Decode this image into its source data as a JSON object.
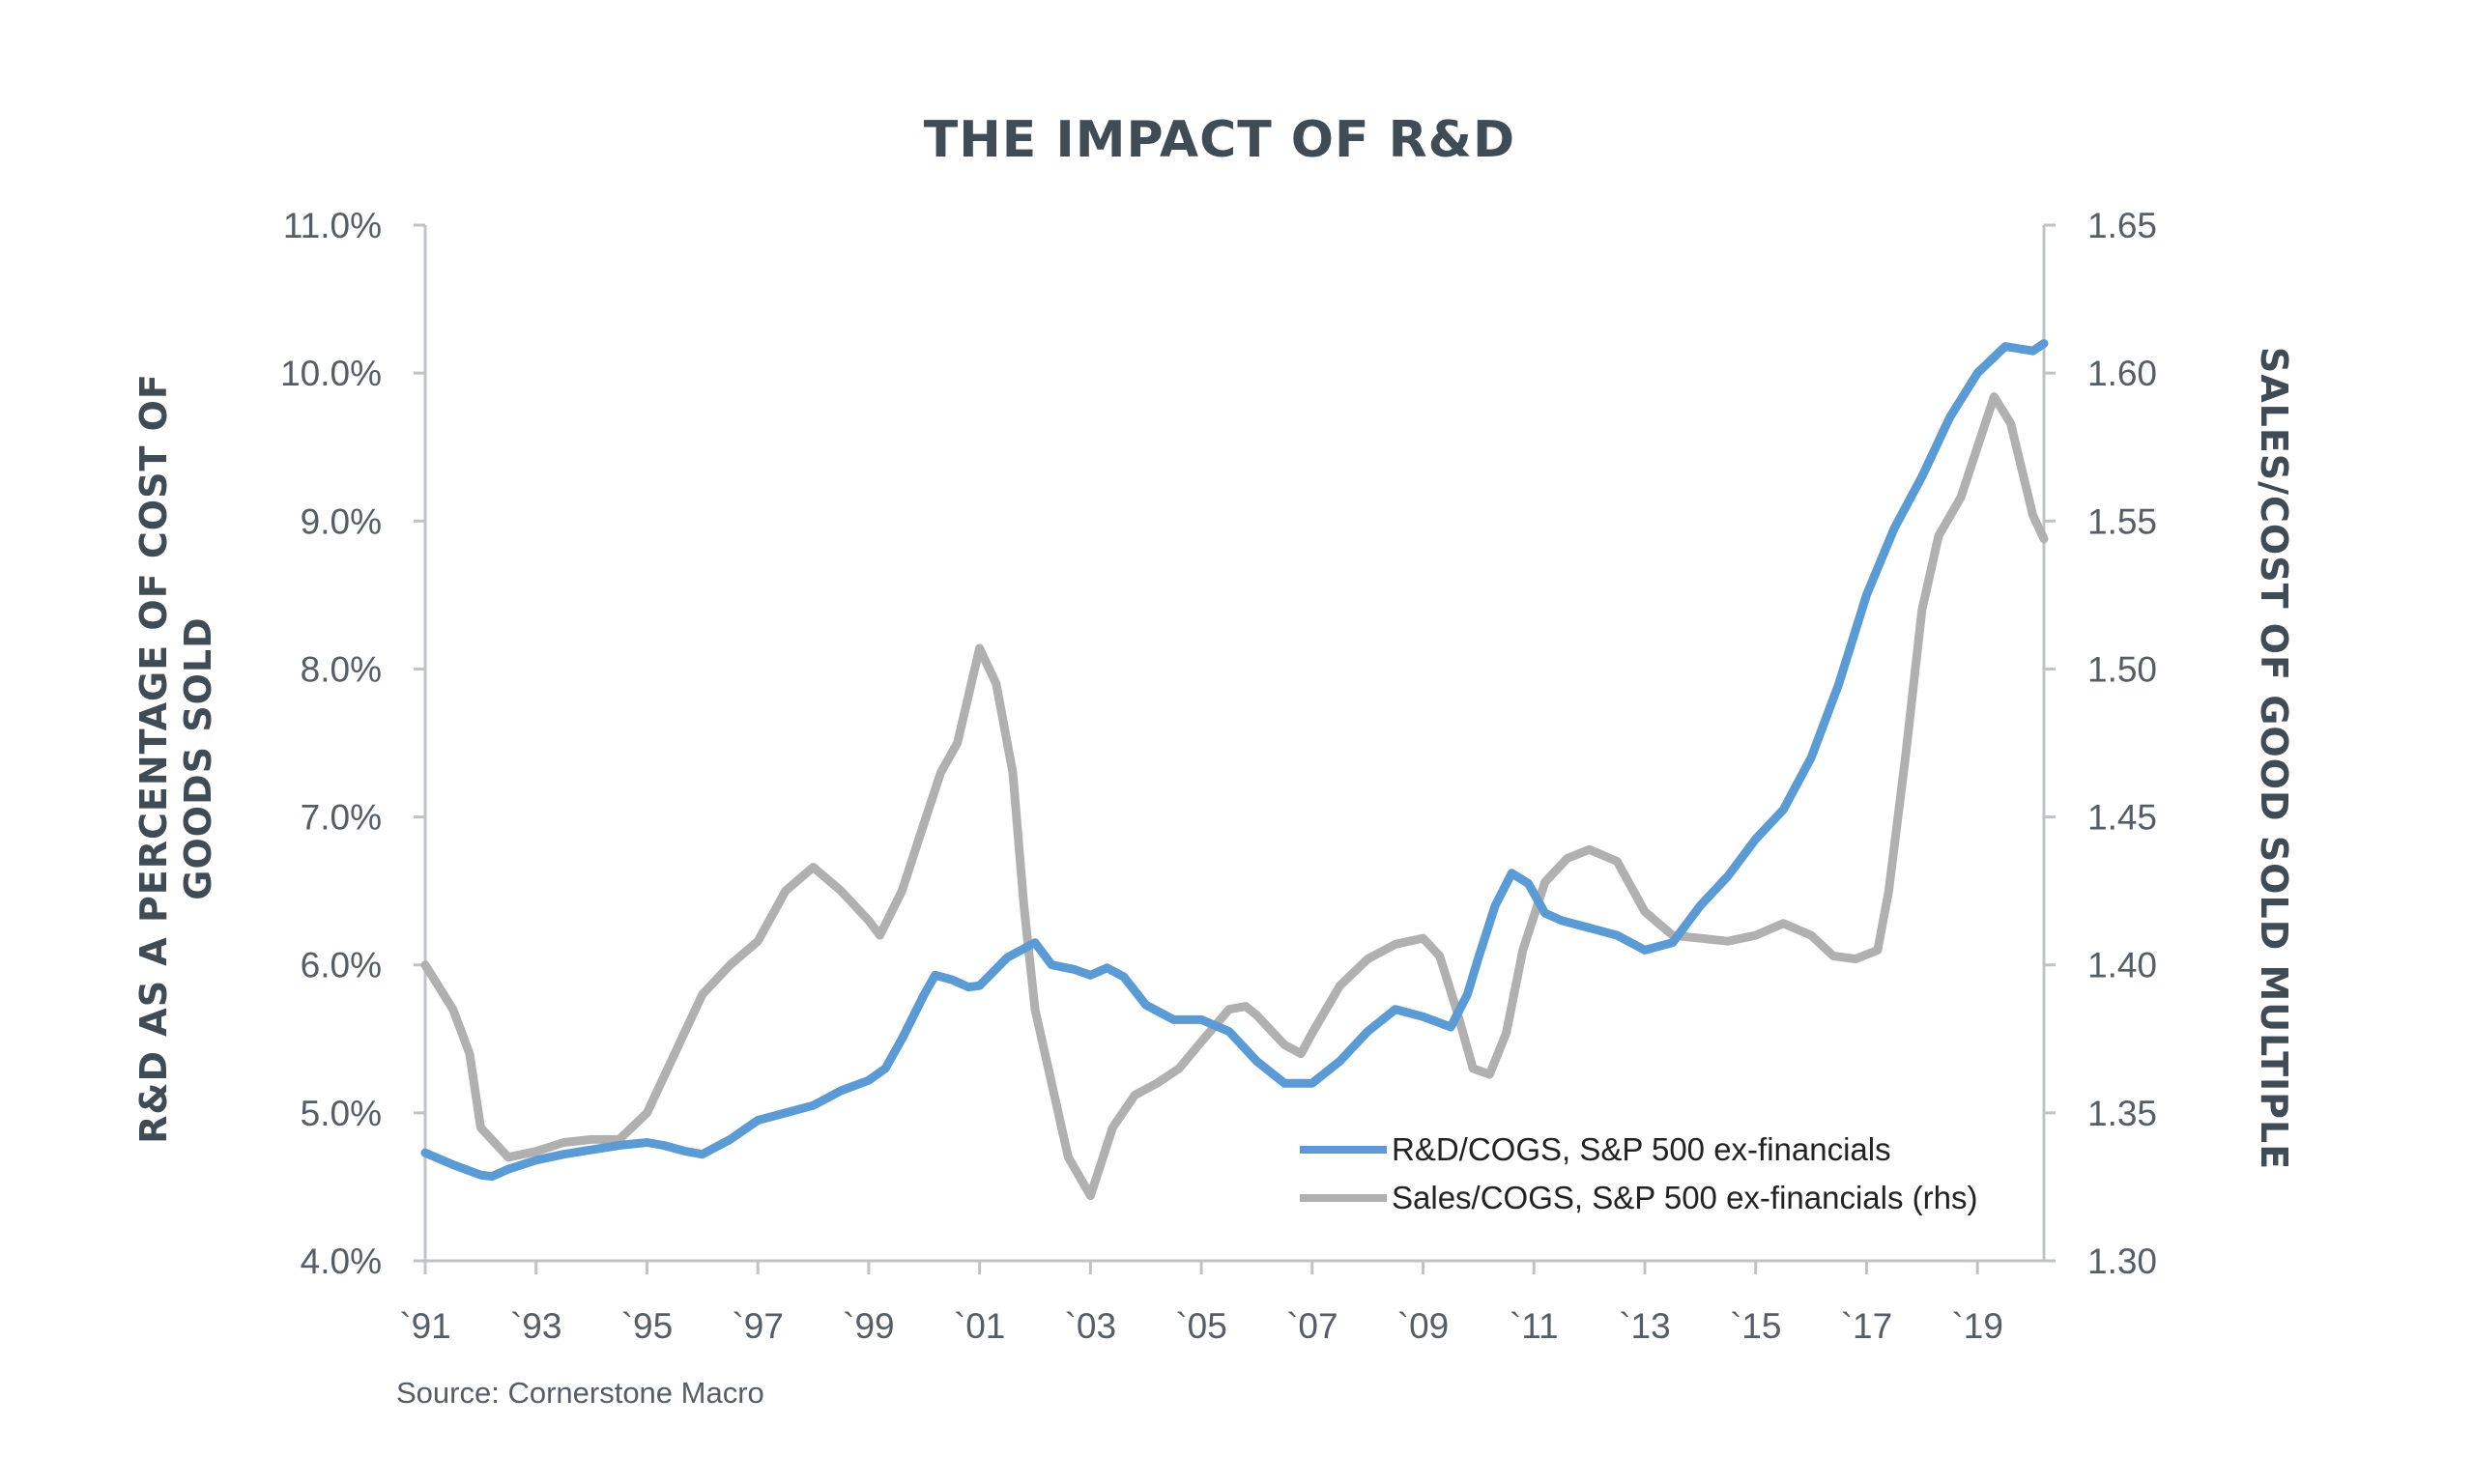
{
  "chart_data": {
    "type": "line",
    "title": "THE IMPACT OF R&D",
    "ylabel_left": [
      "R&D AS A PERCENTAGE OF COST OF",
      "GOODS SOLD"
    ],
    "ylabel_right": "SALES/COST OF GOOD SOLD MULTIPLE",
    "source": "Source: Cornerstone Macro",
    "xlim": [
      1991,
      2020.2
    ],
    "x_ticks": [
      1991,
      1993,
      1995,
      1997,
      1999,
      2001,
      2003,
      2005,
      2007,
      2009,
      2011,
      2013,
      2015,
      2017,
      2019
    ],
    "x_tick_labels": [
      "`91",
      "`93",
      "`95",
      "`97",
      "`99",
      "`01",
      "`03",
      "`05",
      "`07",
      "`09",
      "`11",
      "`13",
      "`15",
      "`17",
      "`19"
    ],
    "ylim_left": [
      4.0,
      11.0
    ],
    "y_ticks_left": [
      4.0,
      5.0,
      6.0,
      7.0,
      8.0,
      9.0,
      10.0,
      11.0
    ],
    "y_tick_labels_left": [
      "4.0%",
      "5.0%",
      "6.0%",
      "7.0%",
      "8.0%",
      "9.0%",
      "10.0%",
      "11.0%"
    ],
    "ylim_right": [
      1.3,
      1.65
    ],
    "y_ticks_right": [
      1.3,
      1.35,
      1.4,
      1.45,
      1.5,
      1.55,
      1.6,
      1.65
    ],
    "y_tick_labels_right": [
      "1.30",
      "1.35",
      "1.40",
      "1.45",
      "1.50",
      "1.55",
      "1.60",
      "1.65"
    ],
    "grid": false,
    "legend_position": "bottom-right",
    "series": [
      {
        "name": "R&D/COGS, S&P 500 ex-financials",
        "axis": "left",
        "color": "#5b9bd5",
        "points": [
          [
            1991.0,
            4.73
          ],
          [
            1991.5,
            4.65
          ],
          [
            1992.0,
            4.58
          ],
          [
            1992.2,
            4.57
          ],
          [
            1992.5,
            4.62
          ],
          [
            1993.0,
            4.68
          ],
          [
            1993.5,
            4.72
          ],
          [
            1994.0,
            4.75
          ],
          [
            1994.5,
            4.78
          ],
          [
            1995.0,
            4.8
          ],
          [
            1995.3,
            4.78
          ],
          [
            1995.7,
            4.74
          ],
          [
            1996.0,
            4.72
          ],
          [
            1996.5,
            4.82
          ],
          [
            1997.0,
            4.95
          ],
          [
            1997.5,
            5.0
          ],
          [
            1998.0,
            5.05
          ],
          [
            1998.5,
            5.15
          ],
          [
            1999.0,
            5.22
          ],
          [
            1999.3,
            5.3
          ],
          [
            1999.6,
            5.5
          ],
          [
            2000.0,
            5.8
          ],
          [
            2000.2,
            5.93
          ],
          [
            2000.5,
            5.9
          ],
          [
            2000.8,
            5.85
          ],
          [
            2001.0,
            5.86
          ],
          [
            2001.5,
            6.05
          ],
          [
            2002.0,
            6.15
          ],
          [
            2002.3,
            6.0
          ],
          [
            2002.7,
            5.97
          ],
          [
            2003.0,
            5.93
          ],
          [
            2003.3,
            5.98
          ],
          [
            2003.6,
            5.92
          ],
          [
            2004.0,
            5.73
          ],
          [
            2004.5,
            5.63
          ],
          [
            2005.0,
            5.63
          ],
          [
            2005.5,
            5.55
          ],
          [
            2006.0,
            5.35
          ],
          [
            2006.5,
            5.2
          ],
          [
            2007.0,
            5.2
          ],
          [
            2007.5,
            5.35
          ],
          [
            2008.0,
            5.55
          ],
          [
            2008.5,
            5.7
          ],
          [
            2009.0,
            5.65
          ],
          [
            2009.5,
            5.58
          ],
          [
            2009.8,
            5.8
          ],
          [
            2010.0,
            6.05
          ],
          [
            2010.3,
            6.4
          ],
          [
            2010.6,
            6.62
          ],
          [
            2010.9,
            6.55
          ],
          [
            2011.2,
            6.35
          ],
          [
            2011.5,
            6.3
          ],
          [
            2012.0,
            6.25
          ],
          [
            2012.5,
            6.2
          ],
          [
            2013.0,
            6.1
          ],
          [
            2013.5,
            6.15
          ],
          [
            2014.0,
            6.4
          ],
          [
            2014.5,
            6.6
          ],
          [
            2015.0,
            6.85
          ],
          [
            2015.5,
            7.05
          ],
          [
            2016.0,
            7.4
          ],
          [
            2016.5,
            7.9
          ],
          [
            2017.0,
            8.5
          ],
          [
            2017.5,
            8.95
          ],
          [
            2018.0,
            9.3
          ],
          [
            2018.5,
            9.7
          ],
          [
            2019.0,
            10.0
          ],
          [
            2019.5,
            10.18
          ],
          [
            2020.0,
            10.15
          ],
          [
            2020.2,
            10.2
          ]
        ]
      },
      {
        "name": "Sales/COGS, S&P 500 ex-financials (rhs)",
        "axis": "right",
        "color": "#b0b0b0",
        "points": [
          [
            1991.0,
            1.4
          ],
          [
            1991.5,
            1.385
          ],
          [
            1991.8,
            1.37
          ],
          [
            1992.0,
            1.345
          ],
          [
            1992.5,
            1.335
          ],
          [
            1993.0,
            1.337
          ],
          [
            1993.5,
            1.34
          ],
          [
            1994.0,
            1.341
          ],
          [
            1994.5,
            1.341
          ],
          [
            1995.0,
            1.35
          ],
          [
            1995.5,
            1.37
          ],
          [
            1996.0,
            1.39
          ],
          [
            1996.5,
            1.4
          ],
          [
            1997.0,
            1.408
          ],
          [
            1997.5,
            1.425
          ],
          [
            1998.0,
            1.433
          ],
          [
            1998.5,
            1.425
          ],
          [
            1999.0,
            1.415
          ],
          [
            1999.2,
            1.41
          ],
          [
            1999.6,
            1.425
          ],
          [
            2000.0,
            1.448
          ],
          [
            2000.3,
            1.465
          ],
          [
            2000.6,
            1.475
          ],
          [
            2001.0,
            1.507
          ],
          [
            2001.3,
            1.495
          ],
          [
            2001.6,
            1.465
          ],
          [
            2001.8,
            1.42
          ],
          [
            2002.0,
            1.385
          ],
          [
            2002.3,
            1.36
          ],
          [
            2002.6,
            1.335
          ],
          [
            2003.0,
            1.322
          ],
          [
            2003.4,
            1.345
          ],
          [
            2003.8,
            1.356
          ],
          [
            2004.2,
            1.36
          ],
          [
            2004.6,
            1.365
          ],
          [
            2005.0,
            1.374
          ],
          [
            2005.5,
            1.385
          ],
          [
            2005.8,
            1.386
          ],
          [
            2006.0,
            1.383
          ],
          [
            2006.5,
            1.373
          ],
          [
            2006.8,
            1.37
          ],
          [
            2007.0,
            1.377
          ],
          [
            2007.5,
            1.393
          ],
          [
            2008.0,
            1.402
          ],
          [
            2008.5,
            1.407
          ],
          [
            2009.0,
            1.409
          ],
          [
            2009.3,
            1.403
          ],
          [
            2009.6,
            1.385
          ],
          [
            2009.9,
            1.365
          ],
          [
            2010.2,
            1.363
          ],
          [
            2010.5,
            1.377
          ],
          [
            2010.8,
            1.405
          ],
          [
            2011.2,
            1.428
          ],
          [
            2011.6,
            1.436
          ],
          [
            2012.0,
            1.439
          ],
          [
            2012.5,
            1.435
          ],
          [
            2013.0,
            1.418
          ],
          [
            2013.5,
            1.41
          ],
          [
            2014.0,
            1.409
          ],
          [
            2014.5,
            1.408
          ],
          [
            2015.0,
            1.41
          ],
          [
            2015.5,
            1.414
          ],
          [
            2016.0,
            1.41
          ],
          [
            2016.4,
            1.403
          ],
          [
            2016.8,
            1.402
          ],
          [
            2017.2,
            1.405
          ],
          [
            2017.4,
            1.425
          ],
          [
            2017.7,
            1.47
          ],
          [
            2018.0,
            1.52
          ],
          [
            2018.3,
            1.545
          ],
          [
            2018.7,
            1.558
          ],
          [
            2019.0,
            1.575
          ],
          [
            2019.3,
            1.592
          ],
          [
            2019.6,
            1.583
          ],
          [
            2020.0,
            1.552
          ],
          [
            2020.2,
            1.544
          ]
        ]
      }
    ]
  }
}
